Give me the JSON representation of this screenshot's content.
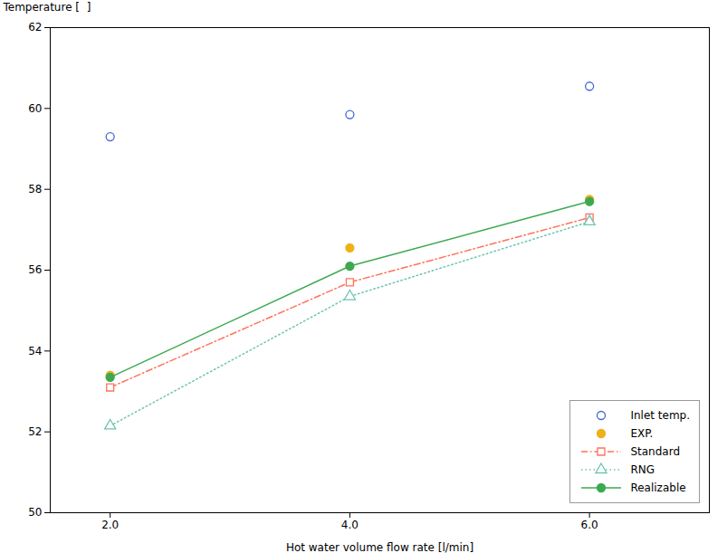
{
  "chart_data": {
    "type": "line",
    "x": [
      2,
      4,
      6
    ],
    "series": [
      {
        "name": "Inlet temp.",
        "type": "scatter",
        "marker": "circle_open",
        "values": [
          59.3,
          59.85,
          60.55
        ]
      },
      {
        "name": "EXP.",
        "type": "scatter",
        "marker": "circle_filled",
        "values": [
          53.4,
          56.55,
          57.75
        ]
      },
      {
        "name": "Standard",
        "type": "line",
        "marker": "square_open",
        "line_style": "dashdot",
        "values": [
          53.1,
          55.7,
          57.3
        ]
      },
      {
        "name": "RNG",
        "type": "line",
        "marker": "triangle_open",
        "line_style": "dotted",
        "values": [
          52.15,
          55.35,
          57.2
        ]
      },
      {
        "name": "Realizable",
        "type": "line",
        "marker": "circle_filled",
        "line_style": "solid",
        "values": [
          53.35,
          56.1,
          57.7
        ]
      }
    ],
    "xlabel": "Hot water volume flow rate [l/min]",
    "ylabel": "Temperature [  ]",
    "xlim": [
      1.5,
      7.0
    ],
    "ylim": [
      50,
      62
    ],
    "xticks": [
      2,
      4,
      6
    ],
    "yticks": [
      50,
      52,
      54,
      56,
      58,
      60,
      62
    ],
    "grid": false,
    "legend": "lower right"
  }
}
